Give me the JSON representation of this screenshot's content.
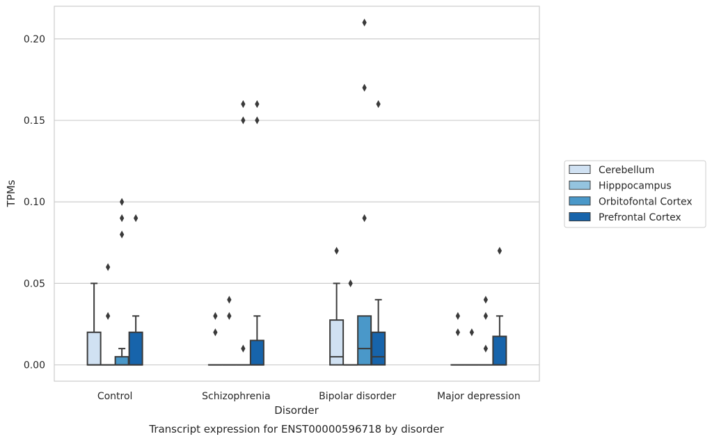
{
  "chart_data": {
    "type": "box",
    "title": "Transcript expression for ENST00000596718 by disorder",
    "xlabel": "Disorder",
    "ylabel": "TPMs",
    "ylim": [
      -0.01,
      0.22
    ],
    "yticks": [
      0.0,
      0.05,
      0.1,
      0.15,
      0.2
    ],
    "ytick_labels": [
      "0.00",
      "0.05",
      "0.10",
      "0.15",
      "0.20"
    ],
    "categories": [
      "Control",
      "Schizophrenia",
      "Bipolar disorder",
      "Major depression"
    ],
    "grid": true,
    "legend_position": "right",
    "series": [
      {
        "name": "Cerebellum",
        "color": "#d0e1f2",
        "boxes": [
          {
            "q1": 0.0,
            "median": 0.0,
            "q3": 0.02,
            "whisker_low": 0.0,
            "whisker_high": 0.05,
            "outliers": []
          },
          {
            "q1": 0.0,
            "median": 0.0,
            "q3": 0.0,
            "whisker_low": 0.0,
            "whisker_high": 0.0,
            "outliers": [
              0.02,
              0.03
            ]
          },
          {
            "q1": 0.0,
            "median": 0.005,
            "q3": 0.0275,
            "whisker_low": 0.0,
            "whisker_high": 0.05,
            "outliers": [
              0.07
            ]
          },
          {
            "q1": 0.0,
            "median": 0.0,
            "q3": 0.0,
            "whisker_low": 0.0,
            "whisker_high": 0.0,
            "outliers": [
              0.02,
              0.03
            ]
          }
        ]
      },
      {
        "name": "Hipppocampus",
        "color": "#94c4df",
        "boxes": [
          {
            "q1": 0.0,
            "median": 0.0,
            "q3": 0.0,
            "whisker_low": 0.0,
            "whisker_high": 0.0,
            "outliers": [
              0.03,
              0.06
            ]
          },
          {
            "q1": 0.0,
            "median": 0.0,
            "q3": 0.0,
            "whisker_low": 0.0,
            "whisker_high": 0.0,
            "outliers": [
              0.03,
              0.04
            ]
          },
          {
            "q1": 0.0,
            "median": 0.0,
            "q3": 0.0,
            "whisker_low": 0.0,
            "whisker_high": 0.0,
            "outliers": [
              0.05
            ]
          },
          {
            "q1": 0.0,
            "median": 0.0,
            "q3": 0.0,
            "whisker_low": 0.0,
            "whisker_high": 0.0,
            "outliers": [
              0.02
            ]
          }
        ]
      },
      {
        "name": "Orbitofontal Cortex",
        "color": "#4a98c9",
        "boxes": [
          {
            "q1": 0.0,
            "median": 0.0,
            "q3": 0.005,
            "whisker_low": 0.0,
            "whisker_high": 0.01,
            "outliers": [
              0.08,
              0.09,
              0.1
            ]
          },
          {
            "q1": 0.0,
            "median": 0.0,
            "q3": 0.0,
            "whisker_low": 0.0,
            "whisker_high": 0.0,
            "outliers": [
              0.01,
              0.15,
              0.16
            ]
          },
          {
            "q1": 0.0,
            "median": 0.01,
            "q3": 0.03,
            "whisker_low": 0.0,
            "whisker_high": 0.03,
            "outliers": [
              0.09,
              0.17,
              0.21
            ]
          },
          {
            "q1": 0.0,
            "median": 0.0,
            "q3": 0.0,
            "whisker_low": 0.0,
            "whisker_high": 0.0,
            "outliers": [
              0.01,
              0.03,
              0.04
            ]
          }
        ]
      },
      {
        "name": "Prefrontal Cortex",
        "color": "#1764ab",
        "boxes": [
          {
            "q1": 0.0,
            "median": 0.0,
            "q3": 0.02,
            "whisker_low": 0.0,
            "whisker_high": 0.03,
            "outliers": [
              0.09
            ]
          },
          {
            "q1": 0.0,
            "median": 0.0,
            "q3": 0.015,
            "whisker_low": 0.0,
            "whisker_high": 0.03,
            "outliers": [
              0.15,
              0.16
            ]
          },
          {
            "q1": 0.0,
            "median": 0.005,
            "q3": 0.02,
            "whisker_low": 0.0,
            "whisker_high": 0.04,
            "outliers": [
              0.16
            ]
          },
          {
            "q1": 0.0,
            "median": 0.0,
            "q3": 0.0175,
            "whisker_low": 0.0,
            "whisker_high": 0.03,
            "outliers": [
              0.07
            ]
          }
        ]
      }
    ]
  }
}
